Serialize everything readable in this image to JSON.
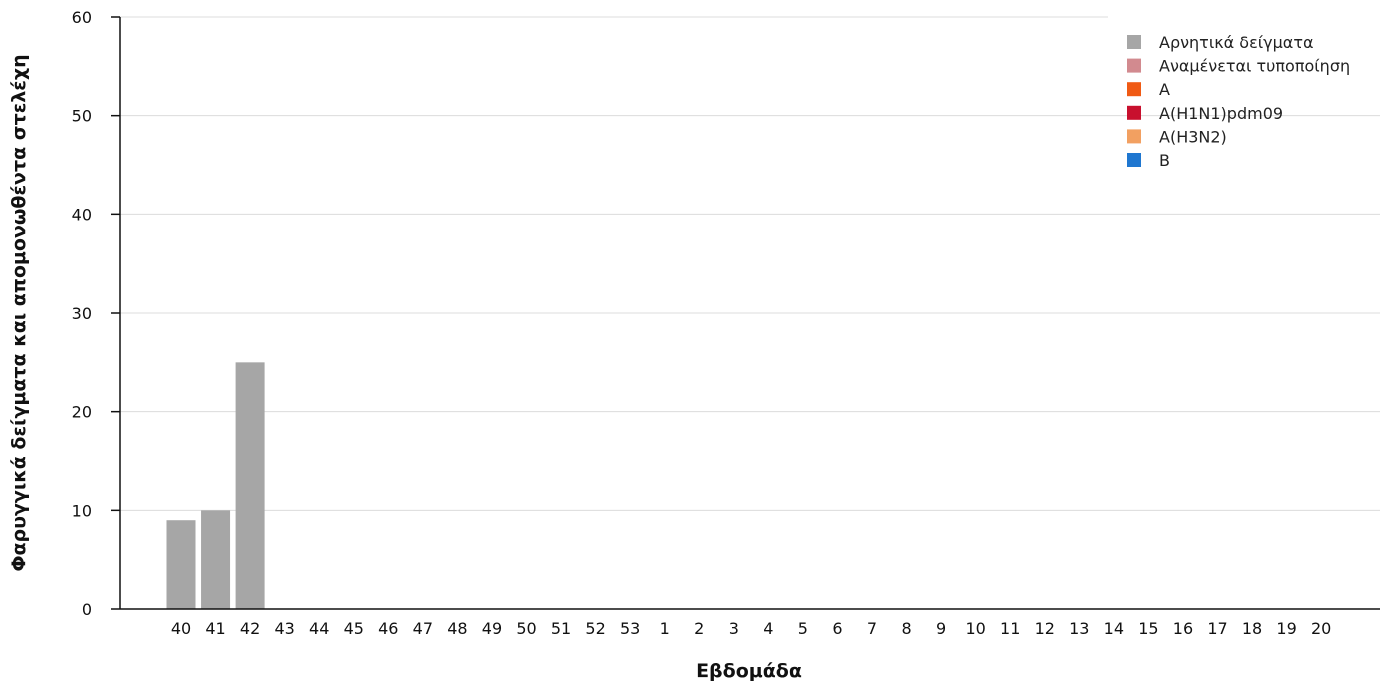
{
  "chart_data": {
    "type": "bar",
    "title": "",
    "xlabel": "Εβδομάδα",
    "ylabel": "Φαρυγγικά δείγματα και απομονωθέντα στελέχη",
    "ylim": [
      0,
      60
    ],
    "yticks": [
      0,
      10,
      20,
      30,
      40,
      50,
      60
    ],
    "grid": true,
    "legend_position": "top-right",
    "stacked": true,
    "categories": [
      "40",
      "41",
      "42",
      "43",
      "44",
      "45",
      "46",
      "47",
      "48",
      "49",
      "50",
      "51",
      "52",
      "53",
      "1",
      "2",
      "3",
      "4",
      "5",
      "6",
      "7",
      "8",
      "9",
      "10",
      "11",
      "12",
      "13",
      "14",
      "15",
      "16",
      "17",
      "18",
      "19",
      "20"
    ],
    "series": [
      {
        "name": "Αρνητικά δείγματα",
        "color": "#a6a6a6",
        "values": [
          9,
          10,
          25,
          0,
          0,
          0,
          0,
          0,
          0,
          0,
          0,
          0,
          0,
          0,
          0,
          0,
          0,
          0,
          0,
          0,
          0,
          0,
          0,
          0,
          0,
          0,
          0,
          0,
          0,
          0,
          0,
          0,
          0,
          0
        ]
      },
      {
        "name": "Αναμένεται τυποποίηση",
        "color": "#d28a8f",
        "values": [
          0,
          0,
          0,
          0,
          0,
          0,
          0,
          0,
          0,
          0,
          0,
          0,
          0,
          0,
          0,
          0,
          0,
          0,
          0,
          0,
          0,
          0,
          0,
          0,
          0,
          0,
          0,
          0,
          0,
          0,
          0,
          0,
          0,
          0
        ]
      },
      {
        "name": "A",
        "color": "#f05a14",
        "values": [
          0,
          0,
          0,
          0,
          0,
          0,
          0,
          0,
          0,
          0,
          0,
          0,
          0,
          0,
          0,
          0,
          0,
          0,
          0,
          0,
          0,
          0,
          0,
          0,
          0,
          0,
          0,
          0,
          0,
          0,
          0,
          0,
          0,
          0
        ]
      },
      {
        "name": "A(H1N1)pdm09",
        "color": "#c8102e",
        "values": [
          0,
          0,
          0,
          0,
          0,
          0,
          0,
          0,
          0,
          0,
          0,
          0,
          0,
          0,
          0,
          0,
          0,
          0,
          0,
          0,
          0,
          0,
          0,
          0,
          0,
          0,
          0,
          0,
          0,
          0,
          0,
          0,
          0,
          0
        ]
      },
      {
        "name": "A(H3N2)",
        "color": "#f2a061",
        "values": [
          0,
          0,
          0,
          0,
          0,
          0,
          0,
          0,
          0,
          0,
          0,
          0,
          0,
          0,
          0,
          0,
          0,
          0,
          0,
          0,
          0,
          0,
          0,
          0,
          0,
          0,
          0,
          0,
          0,
          0,
          0,
          0,
          0,
          0
        ]
      },
      {
        "name": "B",
        "color": "#1f77d0",
        "values": [
          0,
          0,
          0,
          0,
          0,
          0,
          0,
          0,
          0,
          0,
          0,
          0,
          0,
          0,
          0,
          0,
          0,
          0,
          0,
          0,
          0,
          0,
          0,
          0,
          0,
          0,
          0,
          0,
          0,
          0,
          0,
          0,
          0,
          0
        ]
      }
    ]
  }
}
